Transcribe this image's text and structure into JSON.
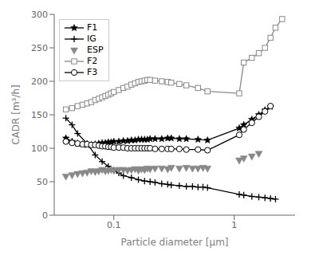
{
  "chart_data": {
    "type": "line",
    "title": "",
    "xlabel": "Particle diameter [μm]",
    "ylabel": "CADR [m³/h]",
    "log": "x",
    "xlim": [
      0.032,
      3.2
    ],
    "xticks": [
      0.1,
      1
    ],
    "ylim": [
      0,
      300
    ],
    "yticks": [
      0,
      50,
      100,
      150,
      200,
      250,
      300
    ],
    "grid": false,
    "legend": "upper left",
    "series": [
      {
        "name": "F1",
        "color": "#000000",
        "marker": "star",
        "line_style": "solid",
        "x": [
          0.04,
          0.045,
          0.05,
          0.055,
          0.06,
          0.065,
          0.07,
          0.075,
          0.08,
          0.085,
          0.09,
          0.095,
          0.1,
          0.11,
          0.12,
          0.13,
          0.14,
          0.15,
          0.16,
          0.17,
          0.18,
          0.19,
          0.2,
          0.22,
          0.25,
          0.28,
          0.3,
          0.35,
          0.4,
          0.5,
          0.6,
          1.1,
          1.2,
          1.4,
          1.6,
          1.8,
          2.0
        ],
        "values": [
          115,
          110,
          107,
          106,
          105,
          105,
          106,
          107,
          108,
          108,
          109,
          109,
          110,
          110,
          111,
          111,
          112,
          112,
          113,
          113,
          113,
          113,
          114,
          114,
          114,
          115,
          115,
          114,
          114,
          113,
          112,
          130,
          135,
          143,
          150,
          157,
          162
        ]
      },
      {
        "name": "IG",
        "color": "#000000",
        "marker": "plus",
        "line_style": "solid",
        "x": [
          0.04,
          0.045,
          0.05,
          0.06,
          0.07,
          0.08,
          0.09,
          0.1,
          0.11,
          0.12,
          0.14,
          0.16,
          0.18,
          0.2,
          0.22,
          0.25,
          0.28,
          0.3,
          0.35,
          0.4,
          0.45,
          0.5,
          0.55,
          0.6,
          1.1,
          1.2,
          1.4,
          1.6,
          1.8,
          2.0,
          2.2
        ],
        "values": [
          145,
          135,
          122,
          107,
          90,
          80,
          73,
          67,
          63,
          59,
          56,
          53,
          51,
          50,
          49,
          47,
          46,
          45,
          44,
          43,
          43,
          42,
          42,
          41,
          31,
          30,
          28,
          27,
          26,
          25,
          24
        ]
      },
      {
        "name": "ESP",
        "color": "#888888",
        "marker": "triangle-down",
        "line_style": "none",
        "x": [
          0.04,
          0.045,
          0.05,
          0.055,
          0.06,
          0.065,
          0.07,
          0.075,
          0.08,
          0.085,
          0.09,
          0.095,
          0.1,
          0.11,
          0.12,
          0.13,
          0.14,
          0.15,
          0.16,
          0.17,
          0.18,
          0.19,
          0.2,
          0.22,
          0.25,
          0.28,
          0.3,
          0.35,
          0.4,
          0.45,
          0.5,
          0.55,
          0.6,
          1.1,
          1.2,
          1.4,
          1.6
        ],
        "values": [
          58,
          60,
          62,
          63,
          64,
          66,
          65,
          66,
          68,
          66,
          67,
          68,
          67,
          68,
          68,
          67,
          68,
          69,
          67,
          69,
          68,
          70,
          69,
          70,
          70,
          69,
          71,
          70,
          71,
          70,
          70,
          71,
          70,
          82,
          85,
          88,
          92
        ]
      },
      {
        "name": "F2",
        "color": "#888888",
        "marker": "square-open",
        "line_style": "solid",
        "x": [
          0.04,
          0.045,
          0.05,
          0.055,
          0.06,
          0.065,
          0.07,
          0.075,
          0.08,
          0.085,
          0.09,
          0.095,
          0.1,
          0.11,
          0.12,
          0.13,
          0.14,
          0.15,
          0.16,
          0.17,
          0.18,
          0.19,
          0.2,
          0.22,
          0.25,
          0.28,
          0.3,
          0.35,
          0.4,
          0.5,
          0.6,
          1.1,
          1.2,
          1.4,
          1.6,
          1.8,
          2.0,
          2.2,
          2.5
        ],
        "values": [
          158,
          160,
          163,
          165,
          167,
          169,
          172,
          174,
          176,
          178,
          180,
          182,
          184,
          187,
          190,
          192,
          195,
          197,
          199,
          200,
          201,
          202,
          202,
          201,
          200,
          199,
          198,
          196,
          194,
          190,
          185,
          182,
          228,
          235,
          242,
          250,
          265,
          280,
          293
        ]
      },
      {
        "name": "F3",
        "color": "#000000",
        "marker": "circle-open",
        "line_style": "solid",
        "x": [
          0.04,
          0.045,
          0.05,
          0.055,
          0.06,
          0.065,
          0.07,
          0.075,
          0.08,
          0.085,
          0.09,
          0.095,
          0.1,
          0.11,
          0.12,
          0.13,
          0.14,
          0.15,
          0.16,
          0.17,
          0.18,
          0.19,
          0.2,
          0.22,
          0.25,
          0.28,
          0.3,
          0.35,
          0.4,
          0.5,
          0.6,
          1.1,
          1.2,
          1.4,
          1.6,
          1.8,
          2.0
        ],
        "values": [
          110,
          108,
          107,
          106,
          106,
          105,
          105,
          104,
          103,
          103,
          102,
          102,
          101,
          101,
          101,
          100,
          100,
          100,
          100,
          100,
          100,
          100,
          100,
          99,
          99,
          99,
          99,
          99,
          98,
          98,
          97,
          120,
          128,
          138,
          147,
          155,
          163
        ]
      }
    ]
  }
}
